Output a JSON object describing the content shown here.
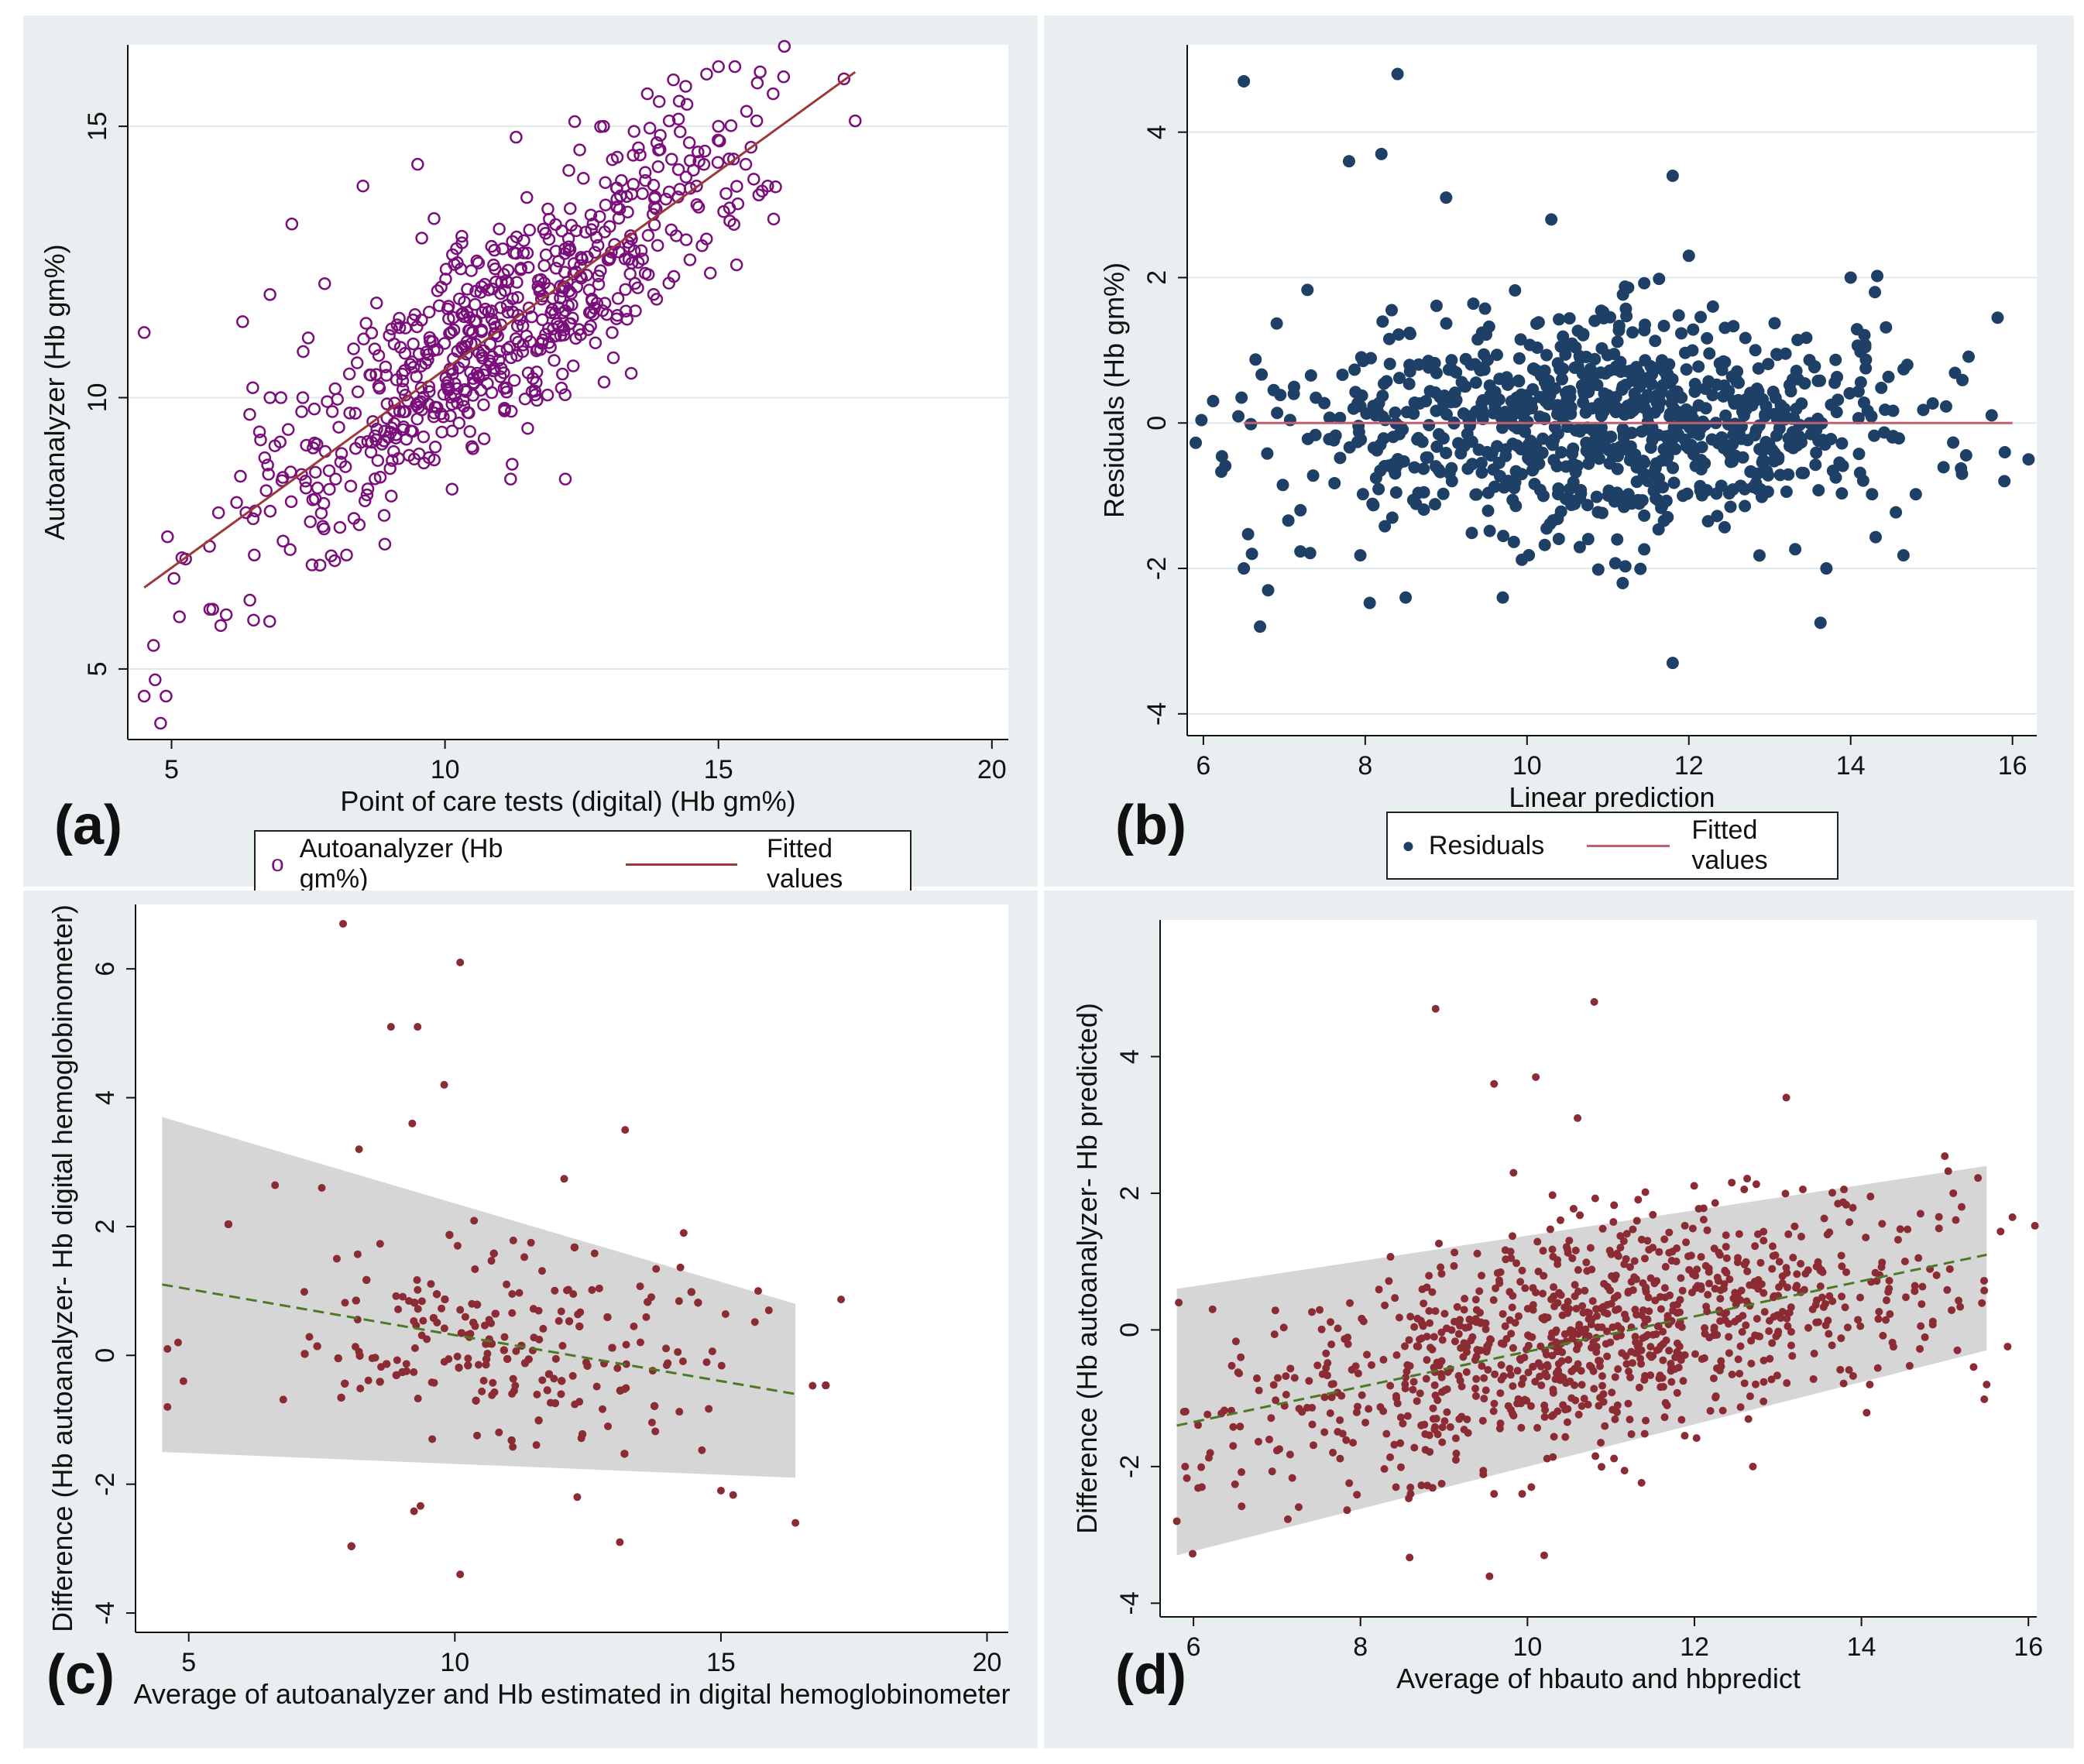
{
  "colors": {
    "panel_bg": "#e9eff1",
    "purple": "#7a0e7a",
    "navy": "#1e3f66",
    "maroon": "#8b2b33",
    "grey_band": "#d2d2d2",
    "green": "#4c7a24",
    "fit_line": "#9c3a3a"
  },
  "panels": {
    "a": {
      "letter": "(a)",
      "legend": {
        "marker": "o",
        "series_label": "Autoanalyzer (Hb gm%)",
        "line_label": "Fitted values"
      }
    },
    "b": {
      "letter": "(b)",
      "legend": {
        "marker": "●",
        "series_label": "Residuals",
        "line_label": "Fitted values"
      }
    },
    "c": {
      "letter": "(c)"
    },
    "d": {
      "letter": "(d)"
    }
  },
  "chart_data": [
    {
      "id": "a",
      "type": "scatter",
      "title": "",
      "xlabel": "Point of care tests (digital) (Hb gm%)",
      "ylabel": "Autoanalyzer (Hb gm%)",
      "xlim": [
        4.2,
        20.3
      ],
      "ylim": [
        3.7,
        16.5
      ],
      "xticks": [
        5,
        10,
        15,
        20
      ],
      "yticks": [
        5,
        10,
        15
      ],
      "grid": "y",
      "series": [
        {
          "name": "Autoanalyzer (Hb gm%)",
          "marker": "hollow-circle"
        }
      ],
      "fit": {
        "name": "Fitted values",
        "x": [
          4.5,
          17.5
        ],
        "y": [
          6.5,
          16.0
        ]
      },
      "points": [
        [
          4.5,
          11.2
        ],
        [
          4.5,
          4.5
        ],
        [
          4.7,
          4.8
        ],
        [
          4.8,
          4.0
        ],
        [
          4.9,
          4.5
        ],
        [
          5.7,
          6.1
        ],
        [
          5.9,
          5.8
        ],
        [
          6.0,
          6.0
        ],
        [
          6.3,
          11.4
        ],
        [
          6.5,
          5.9
        ],
        [
          6.8,
          10.0
        ],
        [
          6.8,
          11.9
        ],
        [
          7.0,
          10.0
        ],
        [
          7.2,
          13.2
        ],
        [
          7.4,
          10.0
        ],
        [
          7.5,
          11.1
        ],
        [
          7.8,
          12.1
        ],
        [
          8.0,
          8.5
        ],
        [
          8.2,
          7.1
        ],
        [
          8.5,
          13.9
        ],
        [
          8.9,
          7.3
        ],
        [
          9.5,
          14.3
        ],
        [
          9.8,
          13.3
        ],
        [
          11.2,
          8.5
        ],
        [
          11.3,
          14.8
        ],
        [
          12.2,
          8.5
        ],
        [
          12.9,
          15.0
        ],
        [
          13.7,
          15.6
        ],
        [
          14.1,
          15.1
        ],
        [
          14.3,
          14.9
        ],
        [
          15.0,
          16.1
        ],
        [
          15.3,
          16.1
        ],
        [
          15.0,
          15.0
        ],
        [
          15.7,
          15.1
        ],
        [
          16.0,
          15.6
        ],
        [
          17.5,
          15.1
        ],
        [
          15.9,
          13.9
        ],
        [
          15.5,
          14.3
        ],
        [
          14.7,
          12.8
        ],
        [
          14.6,
          13.9
        ]
      ]
    },
    {
      "id": "b",
      "type": "scatter",
      "title": "",
      "xlabel": "Linear prediction",
      "ylabel": "Residuals (Hb gm%)",
      "xlim": [
        5.8,
        16.3
      ],
      "ylim": [
        -4.3,
        5.2
      ],
      "xticks": [
        6,
        8,
        10,
        12,
        14,
        16
      ],
      "yticks": [
        -4,
        -2,
        0,
        2,
        4
      ],
      "grid": "y",
      "series": [
        {
          "name": "Residuals",
          "marker": "filled-circle"
        }
      ],
      "fit": {
        "name": "Fitted values",
        "x": [
          6.5,
          16.0
        ],
        "y": [
          0,
          0
        ]
      },
      "points": [
        [
          6.5,
          4.7
        ],
        [
          8.4,
          4.8
        ],
        [
          7.8,
          3.6
        ],
        [
          8.2,
          3.7
        ],
        [
          9.0,
          3.1
        ],
        [
          11.8,
          3.4
        ],
        [
          6.5,
          -2.0
        ],
        [
          6.6,
          -1.8
        ],
        [
          6.8,
          -2.3
        ],
        [
          6.7,
          -2.8
        ],
        [
          11.8,
          -3.3
        ],
        [
          9.7,
          -2.4
        ],
        [
          8.5,
          -2.4
        ],
        [
          13.7,
          -2.0
        ],
        [
          15.9,
          -0.8
        ],
        [
          14.7,
          0.8
        ],
        [
          14.0,
          2.0
        ],
        [
          14.3,
          1.8
        ],
        [
          12.0,
          2.3
        ],
        [
          10.3,
          2.8
        ],
        [
          7.2,
          -1.2
        ]
      ]
    },
    {
      "id": "c",
      "type": "scatter",
      "title": "",
      "xlabel": "Average of autoanalyzer and Hb estimated in digital hemoglobinometer",
      "ylabel": "Difference (Hb autoanalyzer- Hb digital hemoglobinometer)",
      "xlim": [
        4.0,
        20.4
      ],
      "ylim": [
        -4.3,
        7.0
      ],
      "xticks": [
        5,
        10,
        15,
        20
      ],
      "yticks": [
        -4,
        -2,
        0,
        2,
        4,
        6
      ],
      "grid": "none",
      "series": [
        {
          "name": "Difference",
          "marker": "filled-dot"
        }
      ],
      "band": {
        "x": [
          4.5,
          16.4
        ],
        "upper": [
          3.7,
          0.8
        ],
        "lower": [
          -1.5,
          -1.9
        ]
      },
      "trend": {
        "x": [
          4.5,
          16.4
        ],
        "y": [
          1.1,
          -0.6
        ]
      },
      "points": [
        [
          7.9,
          6.7
        ],
        [
          10.1,
          6.1
        ],
        [
          9.8,
          4.2
        ],
        [
          8.8,
          5.1
        ],
        [
          9.3,
          5.1
        ],
        [
          9.2,
          3.6
        ],
        [
          10.1,
          -3.4
        ],
        [
          13.1,
          -2.9
        ],
        [
          16.4,
          -2.6
        ],
        [
          15.0,
          -2.1
        ],
        [
          12.3,
          -2.2
        ],
        [
          4.6,
          -0.8
        ],
        [
          4.6,
          0.1
        ],
        [
          4.8,
          0.2
        ],
        [
          4.9,
          -0.4
        ],
        [
          13.2,
          3.5
        ],
        [
          14.3,
          1.9
        ],
        [
          15.7,
          1.0
        ],
        [
          15.9,
          0.7
        ],
        [
          7.5,
          2.6
        ],
        [
          8.2,
          3.2
        ]
      ]
    },
    {
      "id": "d",
      "type": "scatter",
      "title": "",
      "xlabel": "Average of hbauto and hbpredict",
      "ylabel": "Difference (Hb autoanalyzer- Hb predicted)",
      "xlim": [
        5.6,
        16.1
      ],
      "ylim": [
        -4.2,
        6.0
      ],
      "xticks": [
        6,
        8,
        10,
        12,
        14,
        16
      ],
      "yticks": [
        -4,
        -2,
        0,
        2,
        4
      ],
      "grid": "none",
      "series": [
        {
          "name": "Difference",
          "marker": "filled-dot"
        }
      ],
      "band": {
        "x": [
          5.8,
          15.5
        ],
        "upper": [
          0.6,
          2.4
        ],
        "lower": [
          -3.3,
          -0.3
        ]
      },
      "trend": {
        "x": [
          5.8,
          15.5
        ],
        "y": [
          -1.4,
          1.1
        ]
      },
      "points": [
        [
          8.9,
          4.7
        ],
        [
          10.8,
          4.8
        ],
        [
          9.6,
          3.6
        ],
        [
          10.1,
          3.7
        ],
        [
          10.6,
          3.1
        ],
        [
          13.1,
          3.4
        ],
        [
          10.2,
          -3.3
        ],
        [
          5.8,
          -2.8
        ],
        [
          5.9,
          -2.0
        ],
        [
          6.1,
          -2.3
        ],
        [
          6.2,
          -1.8
        ],
        [
          15.5,
          -0.8
        ],
        [
          15.1,
          2.0
        ],
        [
          15.2,
          1.8
        ],
        [
          14.9,
          0.8
        ],
        [
          14.1,
          -0.8
        ],
        [
          12.7,
          -2.0
        ],
        [
          9.6,
          -2.4
        ],
        [
          8.6,
          -2.4
        ],
        [
          7.3,
          -1.2
        ]
      ]
    }
  ]
}
